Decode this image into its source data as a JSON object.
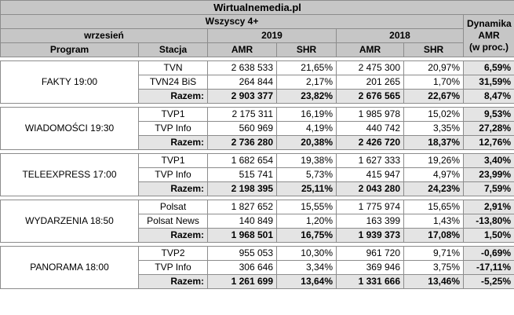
{
  "site": "Wirtualnemedia.pl",
  "audience": "Wszyscy 4+",
  "period": "wrzesień",
  "year_a": "2019",
  "year_b": "2018",
  "col_program": "Program",
  "col_station": "Stacja",
  "col_amr": "AMR",
  "col_shr": "SHR",
  "dyn_line1": "Dynamika",
  "dyn_line2": "AMR",
  "dyn_line3": "(w proc.)",
  "groups": [
    {
      "program": "FAKTY 19:00",
      "rows": [
        {
          "station": "TVN",
          "amr19": "2 638 533",
          "shr19": "21,65%",
          "amr18": "2 475 300",
          "shr18": "20,97%",
          "dyn": "6,59%"
        },
        {
          "station": "TVN24 BiS",
          "amr19": "264 844",
          "shr19": "2,17%",
          "amr18": "201 265",
          "shr18": "1,70%",
          "dyn": "31,59%"
        },
        {
          "station": "Razem:",
          "amr19": "2 903 377",
          "shr19": "23,82%",
          "amr18": "2 676 565",
          "shr18": "22,67%",
          "dyn": "8,47%"
        }
      ]
    },
    {
      "program": "WIADOMOŚCI 19:30",
      "rows": [
        {
          "station": "TVP1",
          "amr19": "2 175 311",
          "shr19": "16,19%",
          "amr18": "1 985 978",
          "shr18": "15,02%",
          "dyn": "9,53%"
        },
        {
          "station": "TVP Info",
          "amr19": "560 969",
          "shr19": "4,19%",
          "amr18": "440 742",
          "shr18": "3,35%",
          "dyn": "27,28%"
        },
        {
          "station": "Razem:",
          "amr19": "2 736 280",
          "shr19": "20,38%",
          "amr18": "2 426 720",
          "shr18": "18,37%",
          "dyn": "12,76%"
        }
      ]
    },
    {
      "program": "TELEEXPRESS 17:00",
      "rows": [
        {
          "station": "TVP1",
          "amr19": "1 682 654",
          "shr19": "19,38%",
          "amr18": "1 627 333",
          "shr18": "19,26%",
          "dyn": "3,40%"
        },
        {
          "station": "TVP Info",
          "amr19": "515 741",
          "shr19": "5,73%",
          "amr18": "415 947",
          "shr18": "4,97%",
          "dyn": "23,99%"
        },
        {
          "station": "Razem:",
          "amr19": "2 198 395",
          "shr19": "25,11%",
          "amr18": "2 043 280",
          "shr18": "24,23%",
          "dyn": "7,59%"
        }
      ]
    },
    {
      "program": "WYDARZENIA 18:50",
      "rows": [
        {
          "station": "Polsat",
          "amr19": "1 827 652",
          "shr19": "15,55%",
          "amr18": "1 775 974",
          "shr18": "15,65%",
          "dyn": "2,91%"
        },
        {
          "station": "Polsat News",
          "amr19": "140 849",
          "shr19": "1,20%",
          "amr18": "163 399",
          "shr18": "1,43%",
          "dyn": "-13,80%"
        },
        {
          "station": "Razem:",
          "amr19": "1 968 501",
          "shr19": "16,75%",
          "amr18": "1 939 373",
          "shr18": "17,08%",
          "dyn": "1,50%"
        }
      ]
    },
    {
      "program": "PANORAMA 18:00",
      "rows": [
        {
          "station": "TVP2",
          "amr19": "955 053",
          "shr19": "10,30%",
          "amr18": "961 720",
          "shr18": "9,71%",
          "dyn": "-0,69%"
        },
        {
          "station": "TVP Info",
          "amr19": "306 646",
          "shr19": "3,34%",
          "amr18": "369 946",
          "shr18": "3,75%",
          "dyn": "-17,11%"
        },
        {
          "station": "Razem:",
          "amr19": "1 261 699",
          "shr19": "13,64%",
          "amr18": "1 331 666",
          "shr18": "13,46%",
          "dyn": "-5,25%"
        }
      ]
    }
  ]
}
